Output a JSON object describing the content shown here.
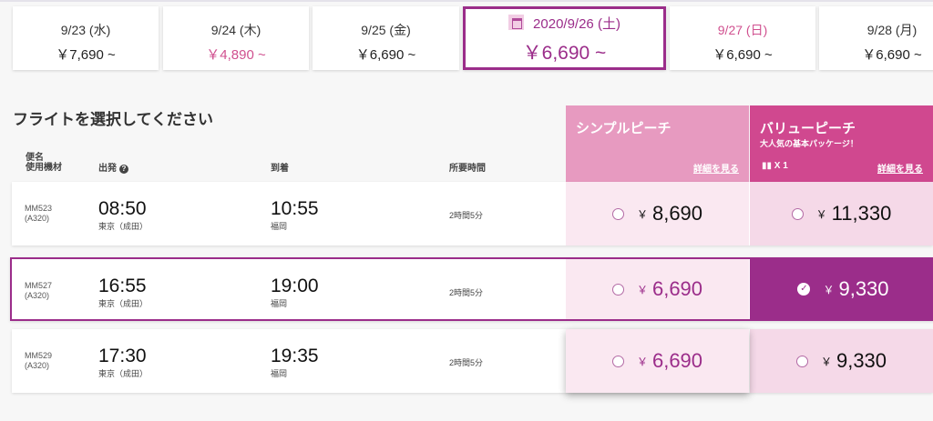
{
  "dates": [
    {
      "date": "9/23 (水)",
      "price": "￥7,690 ~",
      "highlight": false
    },
    {
      "date": "9/24 (木)",
      "price": "￥4,890 ~",
      "highlight": "price"
    },
    {
      "date": "9/25 (金)",
      "price": "￥6,690 ~"
    },
    {
      "date": "2020/9/26 (土)",
      "price": "￥6,690 ~",
      "selected": true
    },
    {
      "date": "9/27 (日)",
      "price": "￥6,690 ~",
      "highlight": "date"
    },
    {
      "date": "9/28 (月)",
      "price": "￥6,690 ~"
    }
  ],
  "heading": "フライトを選択してください",
  "columns": {
    "flight": "便名",
    "aircraft": "使用機材",
    "depart": "出発",
    "arrive": "到着",
    "duration": "所要時間"
  },
  "fares": {
    "simple": {
      "title": "シンプルピーチ",
      "link": "詳細を見る",
      "color": "#e79ac0"
    },
    "value": {
      "title": "バリューピーチ",
      "subtitle": "大人気の基本パッケージ！",
      "bag": "X 1",
      "link": "詳細を見る",
      "color": "#d0488f"
    }
  },
  "yen": "￥",
  "flights": [
    {
      "no": "MM523",
      "aircraft": "(A320)",
      "dep": "08:50",
      "dep_ap": "東京（成田）",
      "arr": "10:55",
      "arr_ap": "福岡",
      "dur": "2時間5分",
      "simple": "8,690",
      "value": "11,330"
    },
    {
      "no": "MM527",
      "aircraft": "(A320)",
      "dep": "16:55",
      "dep_ap": "東京（成田）",
      "arr": "19:00",
      "arr_ap": "福岡",
      "dur": "2時間5分",
      "simple": "6,690",
      "value": "9,330",
      "selected": "value"
    },
    {
      "no": "MM529",
      "aircraft": "(A320)",
      "dep": "17:30",
      "dep_ap": "東京（成田）",
      "arr": "19:35",
      "arr_ap": "福岡",
      "dur": "2時間5分",
      "simple": "6,690",
      "value": "9,330"
    }
  ],
  "accent": "#9b2d8a"
}
